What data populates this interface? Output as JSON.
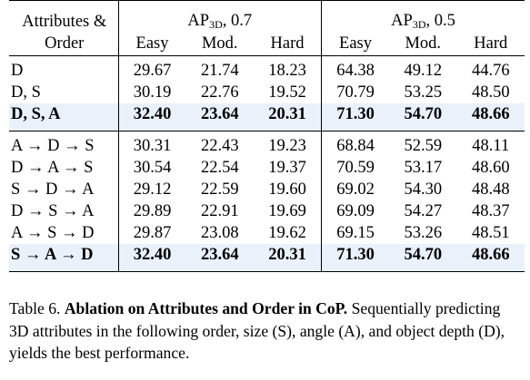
{
  "table": {
    "header": {
      "col0_line1": "Attributes &",
      "col0_line2": "Order",
      "group1": {
        "prefix": "AP",
        "sub": "3D",
        "suffix": ", 0.7"
      },
      "group2": {
        "prefix": "AP",
        "sub": "3D",
        "suffix": ", 0.5"
      },
      "sub_headers": [
        "Easy",
        "Mod.",
        "Hard",
        "Easy",
        "Mod.",
        "Hard"
      ]
    },
    "section1": [
      {
        "label": "D",
        "values": [
          "29.67",
          "21.74",
          "18.23",
          "64.38",
          "49.12",
          "44.76"
        ]
      },
      {
        "label": "D, S",
        "values": [
          "30.19",
          "22.76",
          "19.52",
          "70.79",
          "53.25",
          "48.50"
        ]
      },
      {
        "label": "D, S, A",
        "values": [
          "32.40",
          "23.64",
          "20.31",
          "71.30",
          "54.70",
          "48.66"
        ]
      }
    ],
    "section2": [
      {
        "label": "A → D → S",
        "values": [
          "30.31",
          "22.43",
          "19.23",
          "68.84",
          "52.59",
          "48.11"
        ]
      },
      {
        "label": "D → A → S",
        "values": [
          "30.54",
          "22.54",
          "19.37",
          "70.59",
          "53.17",
          "48.60"
        ]
      },
      {
        "label": "S → D → A",
        "values": [
          "29.12",
          "22.59",
          "19.60",
          "69.02",
          "54.30",
          "48.48"
        ]
      },
      {
        "label": "D → S → A",
        "values": [
          "29.89",
          "22.91",
          "19.69",
          "69.09",
          "54.27",
          "48.37"
        ]
      },
      {
        "label": "A → S → D",
        "values": [
          "29.87",
          "23.08",
          "19.62",
          "69.15",
          "53.26",
          "48.51"
        ]
      },
      {
        "label": "S → A → D",
        "values": [
          "32.40",
          "23.64",
          "20.31",
          "71.30",
          "54.70",
          "48.66"
        ]
      }
    ],
    "highlight_color": "#e9f1fb"
  },
  "caption": {
    "label": "Table 6.",
    "title": "Ablation on Attributes and Order in CoP.",
    "body": "Sequentially predicting 3D attributes in the following order, size (S), angle (A), and object depth (D), yields the best performance."
  }
}
